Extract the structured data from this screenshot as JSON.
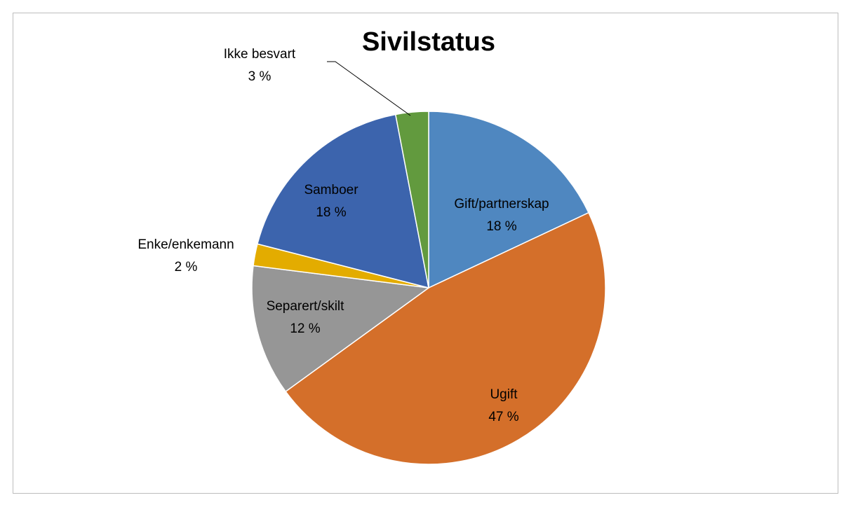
{
  "chart_data": {
    "type": "pie",
    "title": "Sivilstatus",
    "categories": [
      "Gift/partnerskap",
      "Ugift",
      "Separert/skilt",
      "Enke/enkemann",
      "Samboer",
      "Ikke besvart"
    ],
    "values": [
      18,
      47,
      12,
      2,
      18,
      3
    ],
    "value_labels": [
      "18 %",
      "47 %",
      "12 %",
      "2 %",
      "18 %",
      "3 %"
    ],
    "colors": [
      "#4f87c0",
      "#d46f2a",
      "#969696",
      "#e3ac00",
      "#3c64ad",
      "#629a3e"
    ]
  }
}
